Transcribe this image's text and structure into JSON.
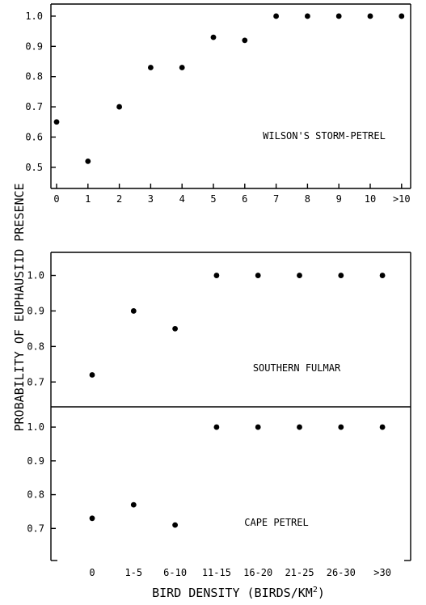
{
  "figure": {
    "ylabel": "PROBABILITY OF EUPHAUSIID PRESENCE",
    "xlabel_main": "BIRD DENSITY (BIRDS/KM",
    "xlabel_sup": "2",
    "xlabel_end": ")"
  },
  "chart_data": [
    {
      "type": "scatter",
      "title": "WILSON'S STORM-PETREL",
      "categories": [
        "0",
        "1",
        "2",
        "3",
        "4",
        "5",
        "6",
        "7",
        "8",
        "9",
        "10",
        ">10"
      ],
      "values": [
        0.65,
        0.52,
        0.7,
        0.83,
        0.83,
        0.93,
        0.92,
        1.0,
        1.0,
        1.0,
        1.0,
        1.0
      ],
      "yticks": [
        "0.5",
        "0.6",
        "0.7",
        "0.8",
        "0.9",
        "1.0"
      ],
      "ylim": [
        0.43,
        1.04
      ],
      "colors": {
        "marker": "#000000",
        "axis": "#000000"
      }
    },
    {
      "type": "scatter",
      "title": "SOUTHERN FULMAR",
      "categories": [
        "0",
        "1-5",
        "6-10",
        "11-15",
        "16-20",
        "21-25",
        "26-30",
        ">30"
      ],
      "values": [
        0.72,
        0.9,
        0.85,
        1.0,
        1.0,
        1.0,
        1.0,
        1.0
      ],
      "yticks": [
        "0.7",
        "0.8",
        "0.9",
        "1.0"
      ],
      "ylim": [
        0.63,
        1.065
      ],
      "colors": {
        "marker": "#000000",
        "axis": "#000000"
      }
    },
    {
      "type": "scatter",
      "title": "CAPE PETREL",
      "categories": [
        "0",
        "1-5",
        "6-10",
        "11-15",
        "16-20",
        "21-25",
        "26-30",
        ">30"
      ],
      "values": [
        0.73,
        0.77,
        0.71,
        1.0,
        1.0,
        1.0,
        1.0,
        1.0
      ],
      "yticks": [
        "0.7",
        "0.8",
        "0.9",
        "1.0"
      ],
      "ylim": [
        0.605,
        1.06
      ],
      "colors": {
        "marker": "#000000",
        "axis": "#000000"
      }
    }
  ]
}
